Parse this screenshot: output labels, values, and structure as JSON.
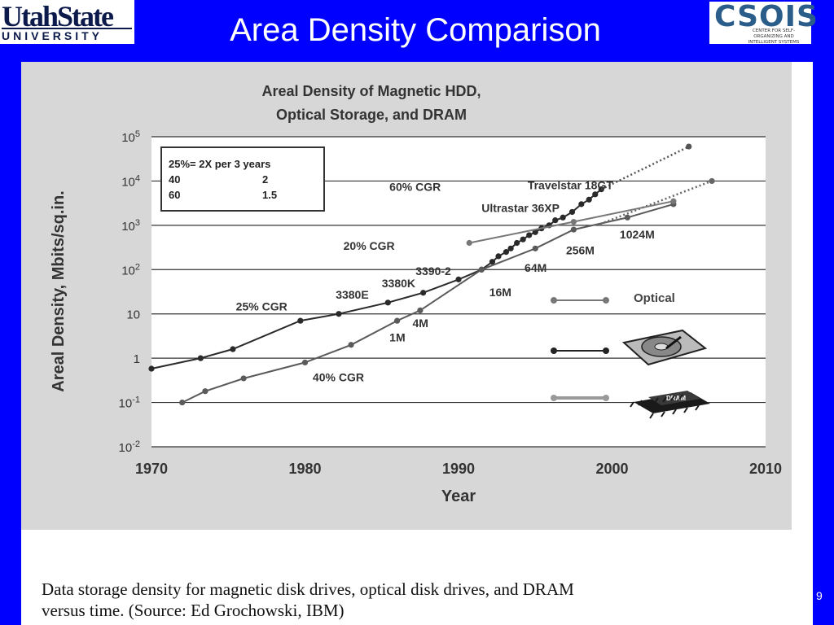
{
  "header": {
    "title": "Area Density Comparison",
    "logo_left_line1": "UtahState",
    "logo_left_line2": "UNIVERSITY",
    "logo_right_line1": "CSOIS",
    "logo_right_line2": "CENTER FOR SELF-ORGANIZING AND INTELLIGENT SYSTEMS"
  },
  "colors": {
    "background": "#0000ff",
    "chart_bg": "#d7d7d7",
    "header_text": "#ffffff"
  },
  "page_number": "9",
  "caption": {
    "line1": "Data storage density for magnetic disk drives, optical disk drives, and DRAM",
    "line2": "versus  time. (Source: Ed Grochowski, IBM)"
  },
  "chart_data": {
    "type": "line",
    "title_line1": "Areal Density of Magnetic HDD,",
    "title_line2": "Optical Storage, and DRAM",
    "xlabel": "Year",
    "ylabel": "Areal Density, Mbits/sq.in.",
    "xlim": [
      1970,
      2010
    ],
    "ylim_log10": [
      -2,
      5
    ],
    "y_scale": "log",
    "grid": "horizontal",
    "x_ticks": [
      "1970",
      "1980",
      "1990",
      "2000",
      "2010"
    ],
    "y_ticks": [
      {
        "value": 100000,
        "base": "10",
        "exp": "5"
      },
      {
        "value": 10000,
        "base": "10",
        "exp": "4"
      },
      {
        "value": 1000,
        "base": "10",
        "exp": "3"
      },
      {
        "value": 100,
        "base": "10",
        "exp": "2"
      },
      {
        "value": 10,
        "base": "10",
        "exp": ""
      },
      {
        "value": 1,
        "base": "1",
        "exp": ""
      },
      {
        "value": 0.1,
        "base": "10",
        "exp": "-1"
      },
      {
        "value": 0.01,
        "base": "10",
        "exp": "-2"
      }
    ],
    "legend": {
      "position": "right",
      "entries": [
        {
          "label": "Optical",
          "series": "optical"
        },
        {
          "label": "",
          "series": "hdd"
        },
        {
          "label": "",
          "series": "dram"
        }
      ]
    },
    "cgr_table": {
      "header": "25%= 2X per 3 years",
      "rows": [
        [
          "40",
          "2"
        ],
        [
          "60",
          "1.5"
        ]
      ]
    },
    "series": [
      {
        "id": "hdd",
        "color": "#2a2a2a",
        "x": [
          1970,
          1973.2,
          1975.3,
          1979.7,
          1982.2,
          1985.4,
          1987.7,
          1990,
          1991.5,
          1992.2,
          1992.6,
          1993.1,
          1993.4,
          1993.8,
          1994.2,
          1994.6,
          1995,
          1995.4,
          1995.9,
          1996.3,
          1996.8,
          1997.4,
          1998,
          1998.5,
          1998.9,
          1999.3
        ],
        "y": [
          0.58,
          1,
          1.6,
          7,
          10,
          18,
          30,
          60,
          100,
          150,
          200,
          250,
          300,
          400,
          480,
          600,
          700,
          850,
          1000,
          1300,
          1500,
          2000,
          3000,
          3800,
          5000,
          6500
        ]
      },
      {
        "id": "hdd_projection",
        "color": "#555555",
        "dashed": true,
        "x": [
          1999.3,
          2005
        ],
        "y": [
          6500,
          60000
        ]
      },
      {
        "id": "dram",
        "color": "#5a5a5a",
        "x": [
          1972,
          1973.5,
          1976,
          1980,
          1983,
          1986,
          1987.5,
          1991.5,
          1995,
          1997.5,
          2001,
          2004
        ],
        "y": [
          0.1,
          0.18,
          0.35,
          0.8,
          2,
          7,
          12,
          100,
          300,
          800,
          1500,
          3000
        ]
      },
      {
        "id": "dram_projection",
        "color": "#666666",
        "dashed": true,
        "x": [
          1999,
          2006.5
        ],
        "y": [
          1000,
          10000
        ]
      },
      {
        "id": "optical",
        "color": "#777777",
        "x": [
          1990.7,
          1997.5,
          2004
        ],
        "y": [
          400,
          1200,
          3500
        ]
      }
    ],
    "annotations": [
      {
        "text": "60% CGR",
        "x": 1985.5,
        "y": 6000
      },
      {
        "text": "Travelstar 18GT",
        "x": 1994.5,
        "y": 6500
      },
      {
        "text": "Ultrastar 36XP",
        "x": 1991.5,
        "y": 2000
      },
      {
        "text": "20% CGR",
        "x": 1982.5,
        "y": 280
      },
      {
        "text": "1024M",
        "x": 2000.5,
        "y": 500
      },
      {
        "text": "256M",
        "x": 1997,
        "y": 220
      },
      {
        "text": "64M",
        "x": 1994.3,
        "y": 90
      },
      {
        "text": "3390-2",
        "x": 1987.2,
        "y": 75
      },
      {
        "text": "3380K",
        "x": 1985,
        "y": 40
      },
      {
        "text": "3380E",
        "x": 1982,
        "y": 22
      },
      {
        "text": "16M",
        "x": 1992,
        "y": 25
      },
      {
        "text": "25% CGR",
        "x": 1975.5,
        "y": 12
      },
      {
        "text": "4M",
        "x": 1987,
        "y": 5
      },
      {
        "text": "1M",
        "x": 1985.5,
        "y": 2.4
      },
      {
        "text": "40% CGR",
        "x": 1980.5,
        "y": 0.3
      }
    ]
  }
}
